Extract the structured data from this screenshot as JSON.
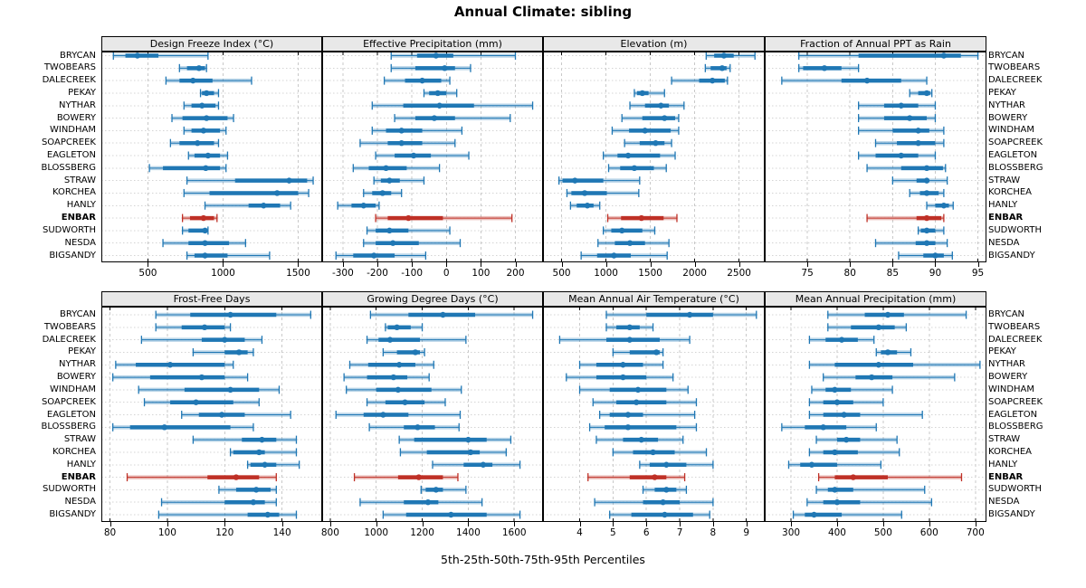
{
  "chart_data": {
    "type": "dotplot",
    "title": "Annual Climate: sibling",
    "footer": "5th-25th-50th-75th-95th Percentiles",
    "percentiles": [
      "5th",
      "25th",
      "50th",
      "75th",
      "95th"
    ],
    "grid": true,
    "legend_position": "none",
    "stations": [
      "BRYCAN",
      "TWOBEARS",
      "DALECREEK",
      "PEKAY",
      "NYTHAR",
      "BOWERY",
      "WINDHAM",
      "SOAPCREEK",
      "EAGLETON",
      "BLOSSBERG",
      "STRAW",
      "KORCHEA",
      "HANLY",
      "ENBAR",
      "SUDWORTH",
      "NESDA",
      "BIGSANDY"
    ],
    "highlight_station": "ENBAR",
    "colors": {
      "normal": "#1f77b4",
      "highlight": "#bf3026",
      "strip_bg": "#e8e8e8",
      "panel_bg": "#ffffff",
      "grid_v": "#c9c9c9",
      "grid_h": "#d4d4d4",
      "border": "#000000"
    },
    "panels": [
      {
        "title": "Design Freeze Index (°C)",
        "row": 0,
        "col": 0,
        "ticks": [
          500,
          1000,
          1500
        ],
        "xlim": [
          190,
          1660
        ],
        "values": [
          [
            270,
            350,
            430,
            570,
            900
          ],
          [
            710,
            760,
            840,
            880,
            890
          ],
          [
            620,
            710,
            800,
            930,
            1190
          ],
          [
            850,
            860,
            890,
            940,
            970
          ],
          [
            740,
            790,
            860,
            950,
            970
          ],
          [
            660,
            730,
            890,
            1030,
            1070
          ],
          [
            740,
            790,
            870,
            980,
            1020
          ],
          [
            650,
            710,
            830,
            940,
            970
          ],
          [
            770,
            810,
            900,
            980,
            1030
          ],
          [
            510,
            600,
            885,
            980,
            1020
          ],
          [
            760,
            1080,
            1440,
            1560,
            1600
          ],
          [
            740,
            910,
            1360,
            1500,
            1570
          ],
          [
            880,
            1170,
            1270,
            1380,
            1450
          ],
          [
            730,
            780,
            870,
            940,
            960
          ],
          [
            730,
            770,
            880,
            890,
            900
          ],
          [
            600,
            770,
            880,
            1040,
            1150
          ],
          [
            760,
            810,
            880,
            1030,
            1310
          ]
        ]
      },
      {
        "title": "Effective Precipitation (mm)",
        "row": 0,
        "col": 1,
        "ticks": [
          -300,
          -200,
          -100,
          0,
          100,
          200
        ],
        "xlim": [
          -360,
          280
        ],
        "values": [
          [
            -160,
            -85,
            -30,
            20,
            200
          ],
          [
            -160,
            -90,
            -5,
            25,
            70
          ],
          [
            -180,
            -120,
            -70,
            -15,
            10
          ],
          [
            -65,
            -50,
            -25,
            0,
            30
          ],
          [
            -215,
            -125,
            -20,
            80,
            250
          ],
          [
            -150,
            -90,
            -35,
            25,
            185
          ],
          [
            -215,
            -175,
            -130,
            -70,
            45
          ],
          [
            -250,
            -170,
            -130,
            -70,
            25
          ],
          [
            -205,
            -150,
            -95,
            -45,
            65
          ],
          [
            -270,
            -225,
            -175,
            -115,
            -20
          ],
          [
            -210,
            -190,
            -165,
            -135,
            -65
          ],
          [
            -240,
            -215,
            -185,
            -160,
            -130
          ],
          [
            -315,
            -275,
            -240,
            -205,
            -195
          ],
          [
            -205,
            -170,
            -110,
            -10,
            190
          ],
          [
            -230,
            -205,
            -165,
            -110,
            10
          ],
          [
            -240,
            -205,
            -155,
            -80,
            40
          ],
          [
            -320,
            -270,
            -210,
            -150,
            -60
          ]
        ]
      },
      {
        "title": "Elevation (m)",
        "row": 0,
        "col": 2,
        "ticks": [
          500,
          1000,
          1500,
          2000,
          2500
        ],
        "xlim": [
          290,
          2790
        ],
        "values": [
          [
            2130,
            2220,
            2330,
            2440,
            2680
          ],
          [
            2120,
            2180,
            2310,
            2360,
            2400
          ],
          [
            1740,
            2050,
            2200,
            2340,
            2370
          ],
          [
            1320,
            1350,
            1410,
            1480,
            1660
          ],
          [
            1270,
            1440,
            1620,
            1710,
            1880
          ],
          [
            1180,
            1410,
            1660,
            1780,
            1820
          ],
          [
            1070,
            1260,
            1440,
            1730,
            1820
          ],
          [
            1210,
            1380,
            1560,
            1660,
            1740
          ],
          [
            970,
            1130,
            1250,
            1610,
            1780
          ],
          [
            1030,
            1160,
            1320,
            1540,
            1680
          ],
          [
            470,
            510,
            650,
            970,
            1380
          ],
          [
            560,
            610,
            760,
            1010,
            1370
          ],
          [
            600,
            670,
            790,
            860,
            930
          ],
          [
            1020,
            1170,
            1400,
            1650,
            1800
          ],
          [
            970,
            1060,
            1180,
            1410,
            1550
          ],
          [
            910,
            1100,
            1270,
            1440,
            1710
          ],
          [
            720,
            900,
            1090,
            1280,
            1690
          ]
        ]
      },
      {
        "title": "Fraction of Annual PPT as Rain",
        "row": 0,
        "col": 3,
        "ticks": [
          75,
          80,
          85,
          90,
          95
        ],
        "xlim": [
          70,
          96
        ],
        "values": [
          [
            74,
            81,
            91,
            93,
            95
          ],
          [
            74,
            74.5,
            77,
            79,
            81
          ],
          [
            72,
            79,
            82,
            86,
            89
          ],
          [
            87,
            88,
            89,
            89.4,
            89.6
          ],
          [
            81,
            84,
            86,
            88,
            90
          ],
          [
            81,
            84,
            87,
            89,
            90
          ],
          [
            81,
            85,
            88,
            89.3,
            91
          ],
          [
            83,
            85.5,
            88,
            90,
            91
          ],
          [
            81,
            83,
            86,
            88,
            90
          ],
          [
            82,
            86,
            89,
            90.9,
            91.2
          ],
          [
            85,
            87.8,
            89,
            89.2,
            91.4
          ],
          [
            87,
            88.2,
            89,
            90.4,
            91
          ],
          [
            89,
            90,
            91,
            91.6,
            92.1
          ],
          [
            82,
            87.8,
            89,
            90.7,
            91
          ],
          [
            88,
            88.3,
            89,
            90,
            91
          ],
          [
            83,
            87.7,
            89,
            90,
            91.4
          ],
          [
            85.7,
            88.6,
            90,
            91,
            92
          ]
        ]
      },
      {
        "title": "Frost-Free Days",
        "row": 1,
        "col": 0,
        "ticks": [
          80,
          100,
          120,
          140
        ],
        "xlim": [
          77,
          154
        ],
        "values": [
          [
            96,
            108,
            122,
            138,
            150
          ],
          [
            96,
            105,
            113,
            120,
            122
          ],
          [
            91,
            112,
            120,
            127,
            133
          ],
          [
            109,
            120,
            125,
            128,
            130
          ],
          [
            82,
            89,
            101,
            120,
            123
          ],
          [
            81,
            94,
            112,
            120,
            128
          ],
          [
            90,
            106,
            122,
            132,
            139
          ],
          [
            92,
            101,
            110,
            123,
            132
          ],
          [
            105,
            111,
            119,
            127,
            143
          ],
          [
            81,
            87,
            99,
            122,
            130
          ],
          [
            109,
            126,
            133,
            138,
            145
          ],
          [
            122,
            123,
            132,
            134,
            145
          ],
          [
            128,
            129,
            134,
            138,
            146
          ],
          [
            86,
            114,
            124,
            132,
            138
          ],
          [
            118,
            124,
            131,
            136,
            138
          ],
          [
            98,
            120,
            130,
            134,
            138
          ],
          [
            97,
            128,
            135,
            139,
            145
          ]
        ]
      },
      {
        "title": "Growing Degree Days (°C)",
        "row": 1,
        "col": 1,
        "ticks": [
          800,
          1000,
          1200,
          1400,
          1600
        ],
        "xlim": [
          765,
          1725
        ],
        "values": [
          [
            975,
            1140,
            1290,
            1430,
            1680
          ],
          [
            1040,
            1050,
            1090,
            1150,
            1200
          ],
          [
            960,
            1010,
            1060,
            1190,
            1390
          ],
          [
            1030,
            1090,
            1170,
            1190,
            1210
          ],
          [
            885,
            965,
            1100,
            1170,
            1250
          ],
          [
            860,
            960,
            1075,
            1135,
            1230
          ],
          [
            870,
            1000,
            1095,
            1240,
            1370
          ],
          [
            960,
            1040,
            1125,
            1210,
            1300
          ],
          [
            825,
            945,
            1030,
            1140,
            1365
          ],
          [
            970,
            1120,
            1180,
            1255,
            1360
          ],
          [
            1100,
            1165,
            1400,
            1480,
            1585
          ],
          [
            1105,
            1220,
            1410,
            1450,
            1565
          ],
          [
            1245,
            1380,
            1465,
            1505,
            1625
          ],
          [
            905,
            1095,
            1185,
            1290,
            1355
          ],
          [
            1195,
            1215,
            1260,
            1290,
            1390
          ],
          [
            930,
            1120,
            1225,
            1270,
            1460
          ],
          [
            1030,
            1130,
            1325,
            1480,
            1625
          ]
        ]
      },
      {
        "title": "Mean Annual Air Temperature (°C)",
        "row": 1,
        "col": 2,
        "ticks": [
          4,
          5,
          6,
          7,
          8,
          9
        ],
        "xlim": [
          2.9,
          9.55
        ],
        "values": [
          [
            4.8,
            6.0,
            7.3,
            8.0,
            9.3
          ],
          [
            4.8,
            5.1,
            5.5,
            5.8,
            6.2
          ],
          [
            3.4,
            4.8,
            5.5,
            6.4,
            7.3
          ],
          [
            5.0,
            5.5,
            6.3,
            6.4,
            6.5
          ],
          [
            4.0,
            4.5,
            5.3,
            5.9,
            6.5
          ],
          [
            3.6,
            4.5,
            5.3,
            6.0,
            6.8
          ],
          [
            4.0,
            4.9,
            5.75,
            6.6,
            7.25
          ],
          [
            4.4,
            5.1,
            5.7,
            6.6,
            7.5
          ],
          [
            4.6,
            4.9,
            5.45,
            5.9,
            7.45
          ],
          [
            4.3,
            4.75,
            5.45,
            6.9,
            7.5
          ],
          [
            4.5,
            5.3,
            5.85,
            6.35,
            7.1
          ],
          [
            5.0,
            5.6,
            6.2,
            6.85,
            7.8
          ],
          [
            5.8,
            6.1,
            6.6,
            7.2,
            8.0
          ],
          [
            4.25,
            5.5,
            6.25,
            6.6,
            7.15
          ],
          [
            5.9,
            6.25,
            6.6,
            6.9,
            7.2
          ],
          [
            4.45,
            5.9,
            6.5,
            7.0,
            8.0
          ],
          [
            4.9,
            5.55,
            6.55,
            7.4,
            7.9
          ]
        ]
      },
      {
        "title": "Mean Annual Precipitation (mm)",
        "row": 1,
        "col": 3,
        "ticks": [
          300,
          400,
          500,
          600,
          700
        ],
        "xlim": [
          243,
          724
        ],
        "values": [
          [
            380,
            460,
            510,
            545,
            680
          ],
          [
            380,
            430,
            490,
            525,
            550
          ],
          [
            340,
            375,
            410,
            445,
            480
          ],
          [
            485,
            495,
            510,
            530,
            560
          ],
          [
            340,
            395,
            490,
            565,
            710
          ],
          [
            370,
            440,
            475,
            520,
            655
          ],
          [
            345,
            375,
            395,
            430,
            520
          ],
          [
            340,
            370,
            400,
            435,
            500
          ],
          [
            340,
            370,
            415,
            450,
            585
          ],
          [
            280,
            330,
            370,
            420,
            485
          ],
          [
            355,
            400,
            420,
            450,
            530
          ],
          [
            340,
            370,
            395,
            445,
            535
          ],
          [
            295,
            320,
            345,
            400,
            495
          ],
          [
            360,
            395,
            435,
            510,
            670
          ],
          [
            355,
            380,
            395,
            435,
            590
          ],
          [
            335,
            370,
            400,
            450,
            605
          ],
          [
            305,
            330,
            350,
            410,
            540
          ]
        ]
      }
    ]
  }
}
